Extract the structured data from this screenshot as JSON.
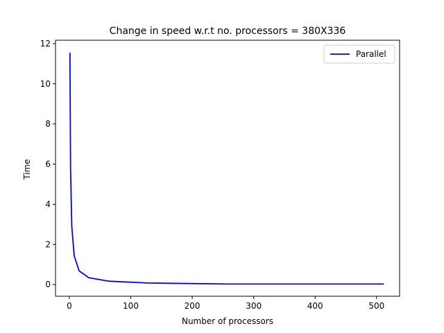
{
  "chart_data": {
    "type": "line",
    "title": "Change in speed w.r.t no. processors = 380X336",
    "xlabel": "Number of processors",
    "ylabel": "Time",
    "xlim": [
      -22.5,
      537.5
    ],
    "ylim": [
      -0.58,
      12.17
    ],
    "xticks": [
      0,
      100,
      200,
      300,
      400,
      500
    ],
    "yticks": [
      0,
      2,
      4,
      6,
      8,
      10,
      12
    ],
    "grid": false,
    "legend_position": "top-right",
    "series": [
      {
        "name": "Parallel",
        "color": "#0000ff",
        "x": [
          1,
          2,
          4,
          8,
          16,
          32,
          64,
          128,
          256,
          512
        ],
        "y": [
          11.55,
          5.8,
          2.9,
          1.42,
          0.68,
          0.34,
          0.17,
          0.08,
          0.03,
          0.03
        ]
      }
    ]
  }
}
